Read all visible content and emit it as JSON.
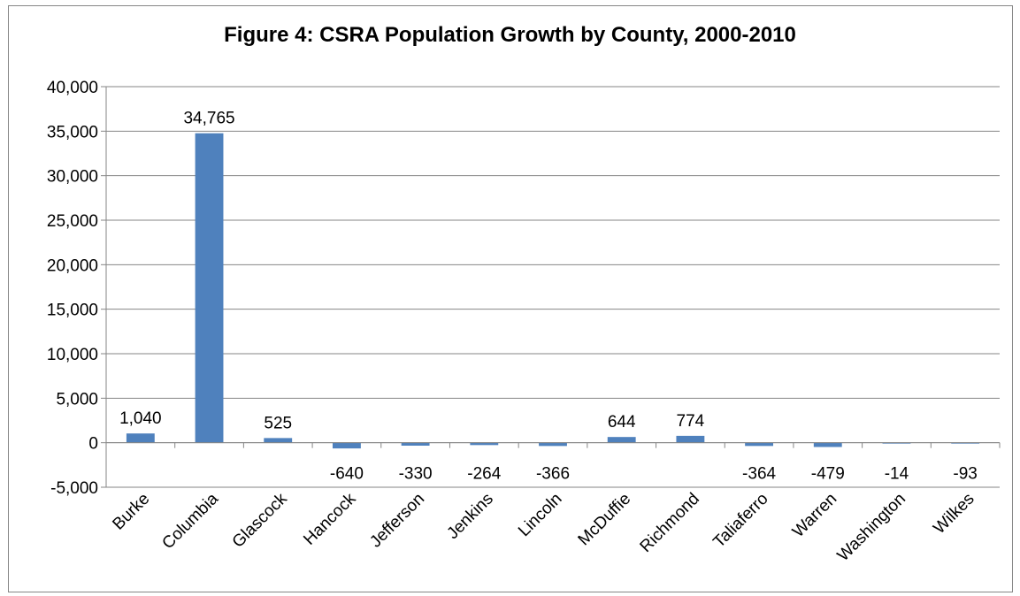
{
  "chart_data": {
    "type": "bar",
    "title": "Figure 4: CSRA Population Growth by County, 2000-2010",
    "xlabel": "",
    "ylabel": "",
    "categories": [
      "Burke",
      "Columbia",
      "Glascock",
      "Hancock",
      "Jefferson",
      "Jenkins",
      "Lincoln",
      "McDuffie",
      "Richmond",
      "Taliaferro",
      "Warren",
      "Washington",
      "Wilkes"
    ],
    "values": [
      1040,
      34765,
      525,
      -640,
      -330,
      -264,
      -366,
      644,
      774,
      -364,
      -479,
      -14,
      -93
    ],
    "data_labels": [
      "1,040",
      "34,765",
      "525",
      "-640",
      "-330",
      "-264",
      "-366",
      "644",
      "774",
      "-364",
      "-479",
      "-14",
      "-93"
    ],
    "ylim": [
      -5000,
      40000
    ],
    "yticks": [
      -5000,
      0,
      5000,
      10000,
      15000,
      20000,
      25000,
      30000,
      35000,
      40000
    ],
    "ytick_labels": [
      "-5,000",
      "0",
      "5,000",
      "10,000",
      "15,000",
      "20,000",
      "25,000",
      "30,000",
      "35,000",
      "40,000"
    ],
    "grid": true,
    "legend": "none",
    "colors": {
      "bar": "#4F81BD",
      "grid": "#868686",
      "frame": "#868686"
    }
  }
}
